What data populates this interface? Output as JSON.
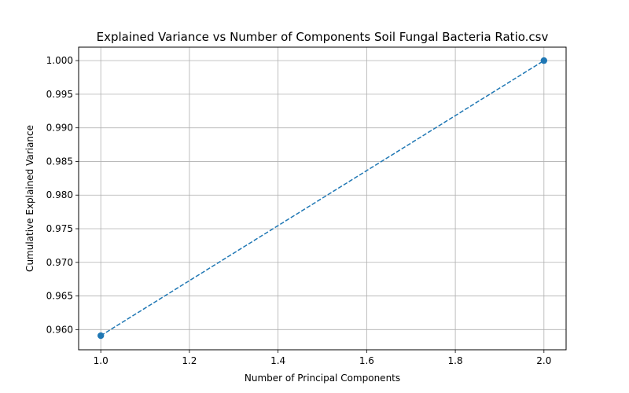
{
  "chart_data": {
    "type": "line",
    "title": "Explained Variance vs Number of Components Soil Fungal Bacteria Ratio.csv",
    "xlabel": "Number of Principal Components",
    "ylabel": "Cumulative Explained Variance",
    "x": [
      1.0,
      2.0
    ],
    "series": [
      {
        "values": [
          0.9591,
          1.0
        ],
        "color": "#1f77b4",
        "line_style": "dashed",
        "marker": "circle"
      }
    ],
    "xlim": [
      0.95,
      2.05
    ],
    "ylim": [
      0.957,
      1.002
    ],
    "x_ticks": [
      "1.0",
      "1.2",
      "1.4",
      "1.6",
      "1.8",
      "2.0"
    ],
    "y_ticks": [
      "0.960",
      "0.965",
      "0.970",
      "0.975",
      "0.980",
      "0.985",
      "0.990",
      "0.995",
      "1.000"
    ],
    "grid": true
  }
}
